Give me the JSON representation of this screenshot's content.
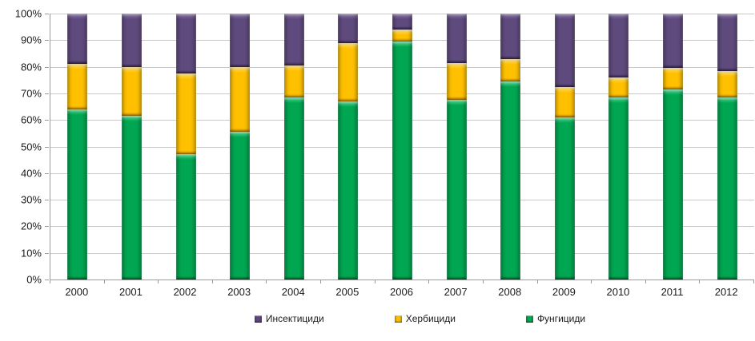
{
  "chart_data": {
    "type": "bar",
    "stacked": true,
    "stacking": "percent",
    "title": "",
    "xlabel": "",
    "ylabel": "",
    "ylim": [
      0,
      100
    ],
    "grid": true,
    "legend_position": "bottom",
    "background": "#FFFFFF",
    "grid_color": "#C9C9C9",
    "axis_color": "#9C9C9C",
    "categories": [
      "2000",
      "2001",
      "2002",
      "2003",
      "2004",
      "2005",
      "2006",
      "2007",
      "2008",
      "2009",
      "2010",
      "2011",
      "2012"
    ],
    "y_ticks": [
      {
        "value": 0,
        "label": "0%"
      },
      {
        "value": 10,
        "label": "10%"
      },
      {
        "value": 20,
        "label": "20%"
      },
      {
        "value": 30,
        "label": "30%"
      },
      {
        "value": 40,
        "label": "40%"
      },
      {
        "value": 50,
        "label": "50%"
      },
      {
        "value": 60,
        "label": "60%"
      },
      {
        "value": 70,
        "label": "70%"
      },
      {
        "value": 80,
        "label": "80%"
      },
      {
        "value": 90,
        "label": "90%"
      },
      {
        "value": 100,
        "label": "100%"
      }
    ],
    "series": [
      {
        "name": "Инсектициди",
        "color": "#5F4A7D",
        "color_light": "#8B77AC",
        "color_dark": "#443061",
        "values": [
          19,
          20,
          22.5,
          20,
          19.5,
          11,
          6,
          18.5,
          17,
          27.5,
          24,
          20.5,
          21.5
        ]
      },
      {
        "name": "Хербициди",
        "color": "#FFC000",
        "color_light": "#FFDE6B",
        "color_dark": "#D99C00",
        "values": [
          17,
          18.5,
          30.5,
          24.5,
          12,
          22,
          4.5,
          14,
          8.5,
          11.5,
          7.5,
          8,
          10
        ]
      },
      {
        "name": "Фунгициди",
        "color": "#00A651",
        "color_light": "#4BD98C",
        "color_dark": "#007838",
        "values": [
          64,
          61.5,
          47,
          55.5,
          68.5,
          67,
          89.5,
          67.5,
          74.5,
          61,
          68.5,
          71.5,
          68.5
        ]
      }
    ]
  }
}
